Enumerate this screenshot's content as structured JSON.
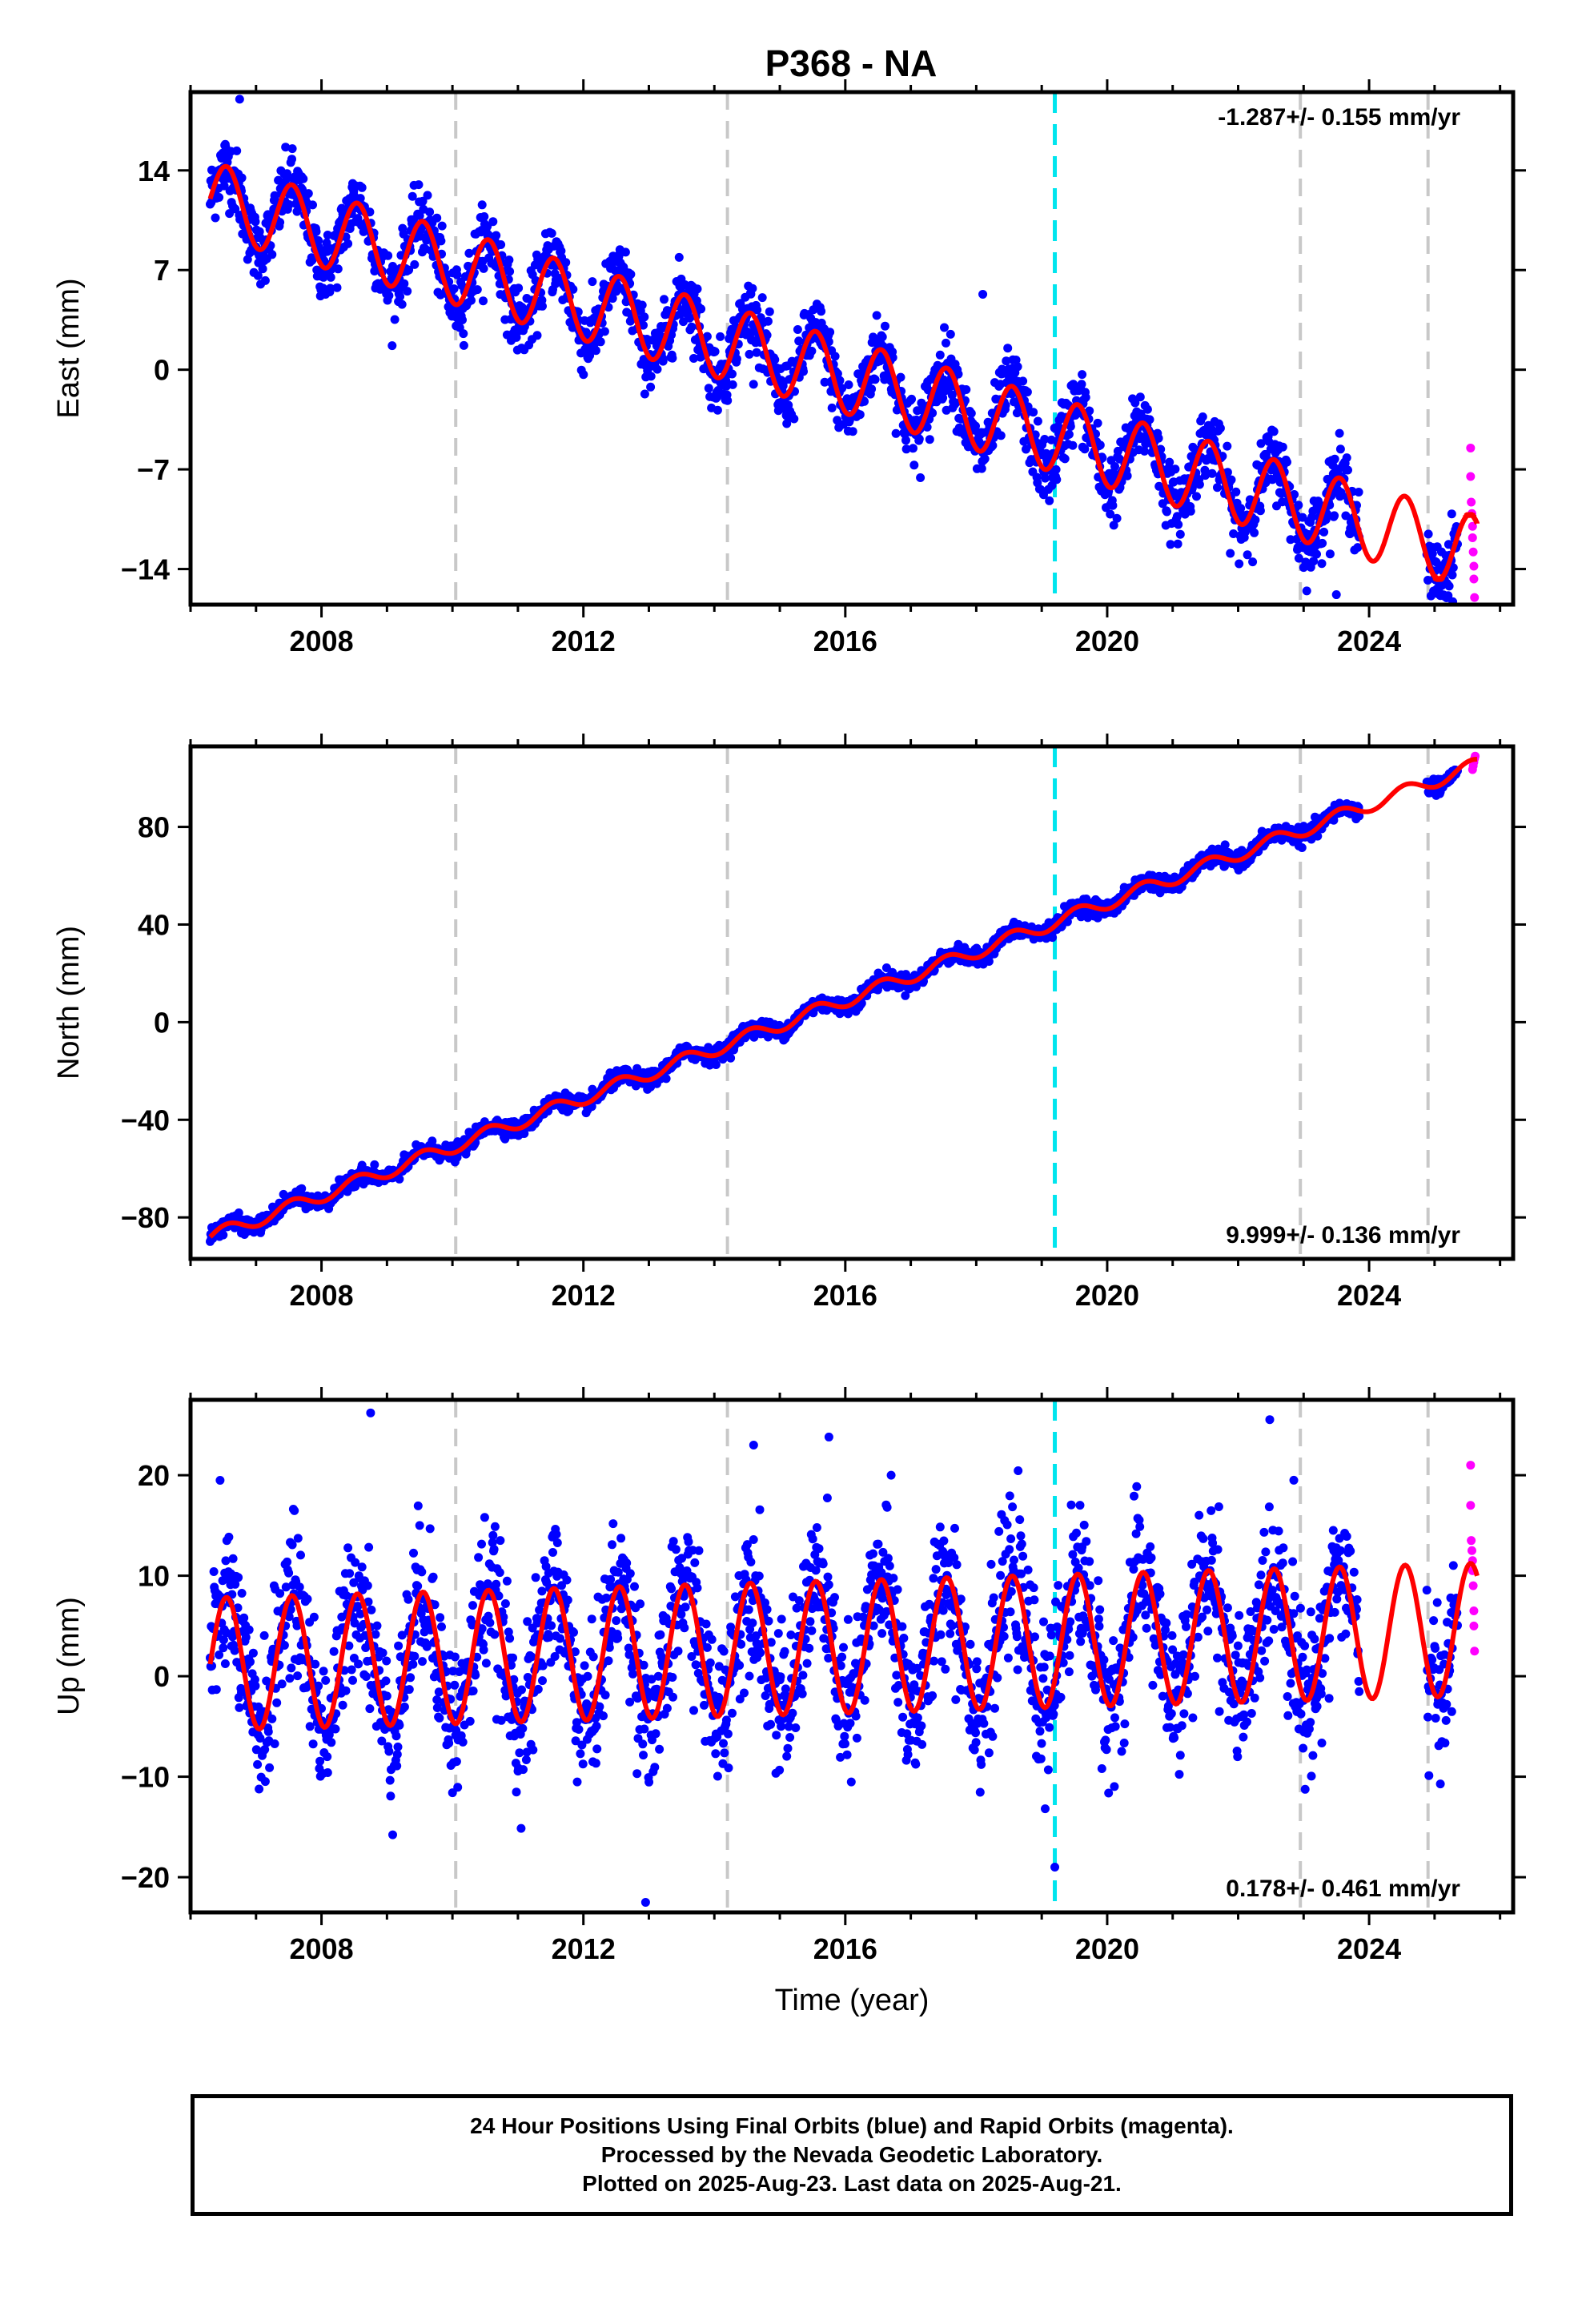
{
  "title": "P368 - NA",
  "colors": {
    "final_points": "#0000ff",
    "rapid_points": "#ff00ff",
    "model": "#ff0000",
    "gridline": "#c8c8c8",
    "event_line": "#00e5ee"
  },
  "chart_data": [
    {
      "type": "scatter",
      "component": "east",
      "ylabel": "East (mm)",
      "xlabel": "",
      "xlim": [
        2006.0,
        2026.2
      ],
      "ylim": [
        -16.5,
        19.5
      ],
      "xticks": [
        2008,
        2012,
        2016,
        2020,
        2024
      ],
      "yticks": [
        -14,
        -7,
        0,
        7,
        14
      ],
      "rate_label": "-1.287+/- 0.155 mm/yr",
      "rate_position": "top-right",
      "trend": {
        "start": [
          2006.3,
          12.0
        ],
        "slope": -1.287,
        "annual_amplitude": 2.6,
        "phase_peak": 0.55
      },
      "gridlines_x": [
        2010.05,
        2014.2,
        2022.95,
        2024.9
      ],
      "event_lines_x": [
        2019.2
      ],
      "series": [
        {
          "name": "Final Orbits",
          "x_range": [
            2006.3,
            2025.35
          ],
          "scatter_mm": 1.2,
          "outliers": [
            [
              2006.75,
              19.0
            ],
            [
              2018.1,
              5.3
            ],
            [
              2023.5,
              -15.8
            ]
          ]
        },
        {
          "name": "Rapid Orbits",
          "x": [
            2025.55,
            2025.55,
            2025.56,
            2025.57,
            2025.58,
            2025.58,
            2025.59,
            2025.6,
            2025.6,
            2025.61
          ],
          "y": [
            -5.5,
            -7.5,
            -9.3,
            -10.1,
            -11.0,
            -11.8,
            -12.8,
            -13.8,
            -14.7,
            -16.0
          ]
        }
      ],
      "model_segments": [
        [
          2006.3,
          2019.2
        ],
        [
          2019.2,
          2024.9
        ],
        [
          2024.9,
          2025.65
        ]
      ]
    },
    {
      "type": "scatter",
      "component": "north",
      "ylabel": "North (mm)",
      "xlabel": "",
      "xlim": [
        2006.0,
        2026.2
      ],
      "ylim": [
        -97,
        113
      ],
      "xticks": [
        2008,
        2012,
        2016,
        2020,
        2024
      ],
      "yticks": [
        -80,
        -40,
        0,
        40,
        80
      ],
      "rate_label": "9.999+/- 0.136 mm/yr",
      "rate_position": "bottom-right",
      "trend": {
        "start": [
          2006.3,
          -88.0
        ],
        "slope": 9.999,
        "annual_amplitude": 2.8,
        "phase_peak": 0.55
      },
      "gridlines_x": [
        2010.05,
        2014.2,
        2022.95,
        2024.9
      ],
      "event_lines_x": [
        2019.2
      ],
      "series": [
        {
          "name": "Final Orbits",
          "x_range": [
            2006.3,
            2025.35
          ],
          "scatter_mm": 1.6,
          "outliers": []
        },
        {
          "name": "Rapid Orbits",
          "x": [
            2025.58,
            2025.59,
            2025.6,
            2025.61,
            2025.62
          ],
          "y": [
            103.5,
            105.0,
            106.5,
            108.0,
            109.0
          ]
        }
      ],
      "model_segments": [
        [
          2006.3,
          2025.65
        ]
      ]
    },
    {
      "type": "scatter",
      "component": "up",
      "ylabel": "Up (mm)",
      "xlabel": "Time (year)",
      "xlim": [
        2006.0,
        2026.2
      ],
      "ylim": [
        -23.5,
        27.5
      ],
      "xticks": [
        2008,
        2012,
        2016,
        2020,
        2024
      ],
      "yticks": [
        -20,
        -10,
        0,
        10,
        20
      ],
      "rate_label": "0.178+/- 0.461 mm/yr",
      "rate_position": "bottom-right",
      "trend": {
        "start": [
          2006.3,
          1.2
        ],
        "slope": 0.178,
        "annual_amplitude": 6.6,
        "phase_peak": 0.55
      },
      "gridlines_x": [
        2010.05,
        2014.2,
        2022.95,
        2024.9
      ],
      "event_lines_x": [
        2019.2
      ],
      "series": [
        {
          "name": "Final Orbits",
          "x_range": [
            2006.3,
            2025.35
          ],
          "scatter_mm": 3.6,
          "outliers": [
            [
              2008.75,
              26.2
            ],
            [
              2012.95,
              -22.5
            ],
            [
              2014.6,
              23.0
            ],
            [
              2015.75,
              23.8
            ],
            [
              2016.7,
              20.0
            ],
            [
              2022.85,
              19.5
            ],
            [
              2019.2,
              -19.0
            ]
          ]
        },
        {
          "name": "Rapid Orbits",
          "x": [
            2025.55,
            2025.55,
            2025.56,
            2025.57,
            2025.58,
            2025.58,
            2025.59,
            2025.6,
            2025.6,
            2025.61
          ],
          "y": [
            21.0,
            17.0,
            13.5,
            12.5,
            11.5,
            10.5,
            9.0,
            6.5,
            5.0,
            2.5
          ]
        }
      ],
      "model_segments": [
        [
          2006.3,
          2025.65
        ]
      ]
    }
  ],
  "footer": {
    "line1": "24 Hour Positions Using Final Orbits (blue) and Rapid Orbits (magenta).",
    "line2": "Processed by the Nevada Geodetic Laboratory.",
    "line3": "Plotted on 2025-Aug-23. Last data on 2025-Aug-21."
  }
}
